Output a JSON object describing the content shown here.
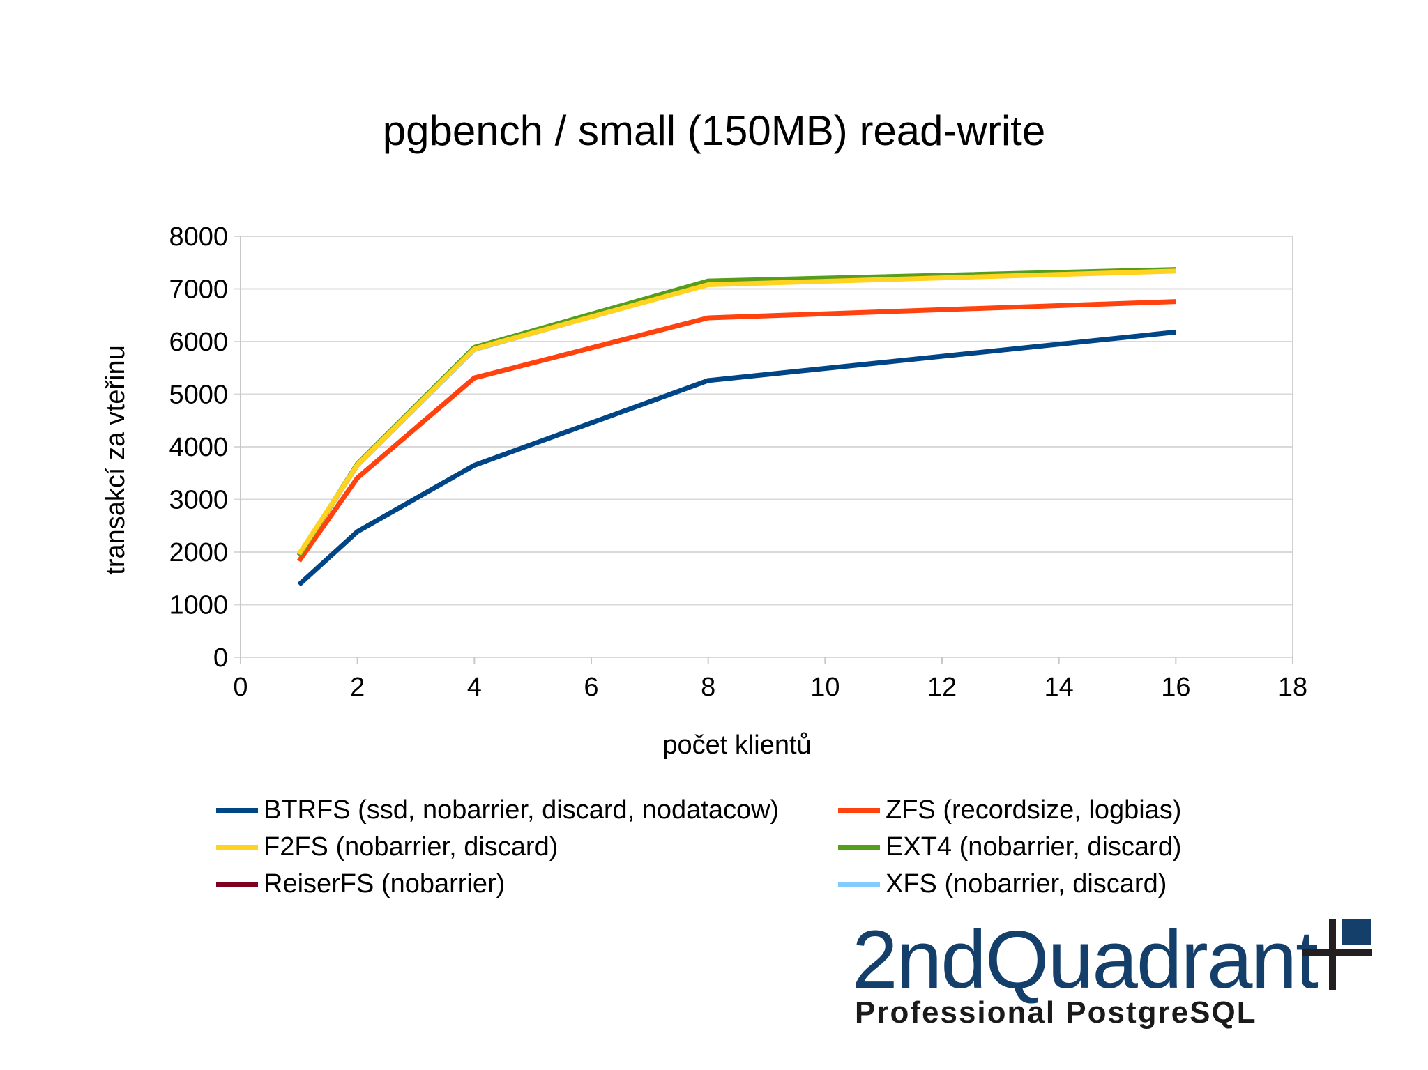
{
  "page": {
    "title": "pgbench / small (150MB) read-write"
  },
  "chart_data": {
    "type": "line",
    "title": "pgbench / small (150MB) read-write",
    "xlabel": "počet klientů",
    "ylabel": "transakcí za vteřinu",
    "xlim": [
      0,
      18
    ],
    "ylim": [
      0,
      8000
    ],
    "x_ticks": [
      "0",
      "2",
      "4",
      "6",
      "8",
      "10",
      "12",
      "14",
      "16",
      "18"
    ],
    "y_ticks": [
      "0",
      "1000",
      "2000",
      "3000",
      "4000",
      "5000",
      "6000",
      "7000",
      "8000"
    ],
    "grid": "horizontal",
    "legend_position": "bottom",
    "x": [
      1,
      2,
      4,
      8,
      16
    ],
    "series": [
      {
        "name": "BTRFS (ssd, nobarrier, discard, nodatacow)",
        "color": "#004586",
        "values": [
          1380,
          2390,
          3650,
          5260,
          6180
        ]
      },
      {
        "name": "ZFS (recordsize, logbias)",
        "color": "#ff420e",
        "values": [
          1830,
          3410,
          5310,
          6450,
          6760
        ]
      },
      {
        "name": "F2FS (nobarrier, discard)",
        "color": "#ffd320",
        "values": [
          1960,
          3660,
          5860,
          7080,
          7340
        ]
      },
      {
        "name": "EXT4 (nobarrier, discard)",
        "color": "#579d1c",
        "values": [
          1930,
          3680,
          5890,
          7150,
          7370
        ]
      },
      {
        "name": "ReiserFS (nobarrier)",
        "color": "#7e0021",
        "values": []
      },
      {
        "name": "XFS (nobarrier, discard)",
        "color": "#83caff",
        "values": [
          1940,
          3650,
          5850,
          7090,
          7350
        ]
      }
    ]
  },
  "legend": {
    "items": [
      {
        "label": "BTRFS (ssd, nobarrier, discard, nodatacow)",
        "color": "#004586"
      },
      {
        "label": "ZFS (recordsize, logbias)",
        "color": "#ff420e"
      },
      {
        "label": "F2FS (nobarrier, discard)",
        "color": "#ffd320"
      },
      {
        "label": "EXT4 (nobarrier, discard)",
        "color": "#579d1c"
      },
      {
        "label": "ReiserFS (nobarrier)",
        "color": "#7e0021"
      },
      {
        "label": "XFS (nobarrier, discard)",
        "color": "#83caff"
      }
    ]
  },
  "logo": {
    "name": "2ndQuadrant",
    "tagline": "Professional PostgreSQL",
    "color": "#143f6b"
  }
}
